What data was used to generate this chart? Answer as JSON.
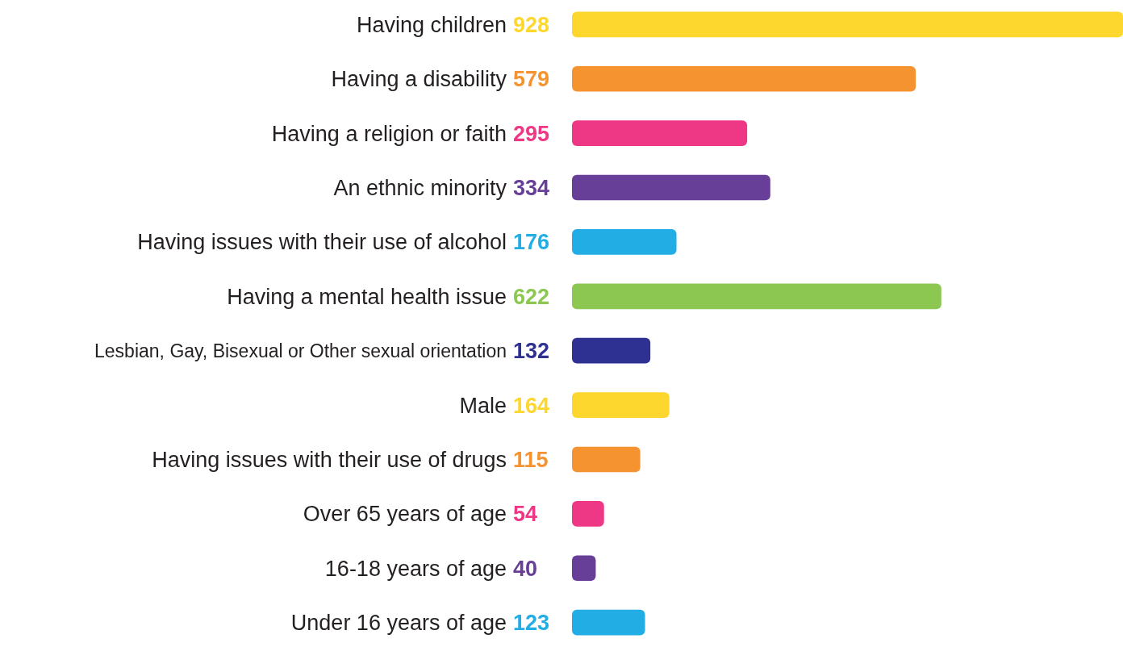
{
  "chart_data": {
    "type": "bar",
    "orientation": "horizontal",
    "data_labels": true,
    "categories": [
      "Having children",
      "Having a disability",
      "Having a religion or faith",
      "An ethnic minority",
      "Having issues with their use of alcohol",
      "Having a mental health issue",
      "Lesbian, Gay, Bisexual or Other sexual orientation",
      "Male",
      "Having issues with their use of drugs",
      "Over 65 years of age",
      "16-18 years of age",
      "Under 16 years of age"
    ],
    "values": [
      928,
      579,
      295,
      334,
      176,
      622,
      132,
      164,
      115,
      54,
      40,
      123
    ],
    "colors": [
      "#fdd62e",
      "#f69331",
      "#ef3885",
      "#673f98",
      "#22ade4",
      "#8bc751",
      "#2e3192",
      "#fdd62e",
      "#f69331",
      "#ef3885",
      "#673f98",
      "#22ade4"
    ]
  }
}
